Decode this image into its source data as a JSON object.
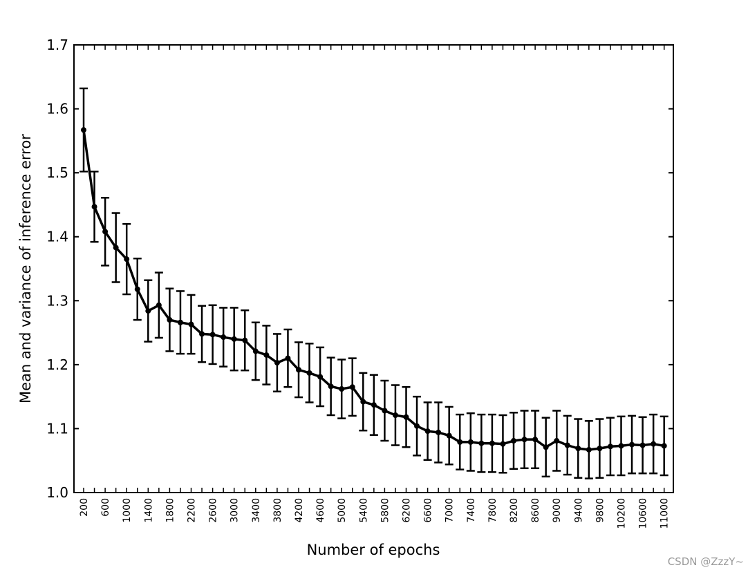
{
  "watermark": "CSDN @ZzzY~",
  "chart_data": {
    "type": "line",
    "title": "",
    "xlabel": "Number of epochs",
    "ylabel": "Mean and variance of inference error",
    "ylim": [
      1.0,
      1.7
    ],
    "y_ticks": [
      "1.0",
      "1.1",
      "1.2",
      "1.3",
      "1.4",
      "1.5",
      "1.6",
      "1.7"
    ],
    "x_tick_labels": [
      "200",
      "600",
      "1000",
      "1400",
      "1800",
      "2200",
      "2600",
      "3000",
      "3400",
      "3800",
      "4200",
      "4600",
      "5000",
      "5400",
      "5800",
      "6200",
      "6600",
      "7000",
      "7400",
      "7800",
      "8200",
      "8600",
      "9000",
      "9400",
      "9800",
      "10200",
      "10600",
      "11000"
    ],
    "grid": false,
    "line_color": "#000000",
    "x": [
      200,
      400,
      600,
      800,
      1000,
      1200,
      1400,
      1600,
      1800,
      2000,
      2200,
      2400,
      2600,
      2800,
      3000,
      3200,
      3400,
      3600,
      3800,
      4000,
      4200,
      4400,
      4600,
      4800,
      5000,
      5200,
      5400,
      5600,
      5800,
      6000,
      6200,
      6400,
      6600,
      6800,
      7000,
      7200,
      7400,
      7600,
      7800,
      8000,
      8200,
      8400,
      8600,
      8800,
      9000,
      9200,
      9400,
      9600,
      9800,
      10000,
      10200,
      10400,
      10600,
      10800,
      11000
    ],
    "series": [
      {
        "values": [
          1.567,
          1.447,
          1.408,
          1.383,
          1.365,
          1.318,
          1.284,
          1.293,
          1.27,
          1.266,
          1.263,
          1.248,
          1.247,
          1.243,
          1.24,
          1.238,
          1.221,
          1.215,
          1.203,
          1.21,
          1.192,
          1.187,
          1.181,
          1.166,
          1.162,
          1.165,
          1.142,
          1.137,
          1.128,
          1.121,
          1.118,
          1.104,
          1.096,
          1.094,
          1.089,
          1.079,
          1.079,
          1.077,
          1.077,
          1.076,
          1.081,
          1.083,
          1.083,
          1.071,
          1.081,
          1.074,
          1.069,
          1.067,
          1.069,
          1.072,
          1.073,
          1.075,
          1.074,
          1.076,
          1.073
        ],
        "errors": [
          0.065,
          0.055,
          0.053,
          0.054,
          0.055,
          0.048,
          0.048,
          0.051,
          0.049,
          0.049,
          0.046,
          0.044,
          0.046,
          0.046,
          0.049,
          0.047,
          0.045,
          0.046,
          0.045,
          0.045,
          0.043,
          0.046,
          0.046,
          0.045,
          0.046,
          0.045,
          0.045,
          0.047,
          0.047,
          0.047,
          0.047,
          0.046,
          0.045,
          0.047,
          0.045,
          0.043,
          0.045,
          0.045,
          0.045,
          0.045,
          0.044,
          0.045,
          0.045,
          0.046,
          0.047,
          0.046,
          0.046,
          0.045,
          0.046,
          0.045,
          0.046,
          0.045,
          0.044,
          0.046,
          0.046
        ]
      }
    ]
  }
}
